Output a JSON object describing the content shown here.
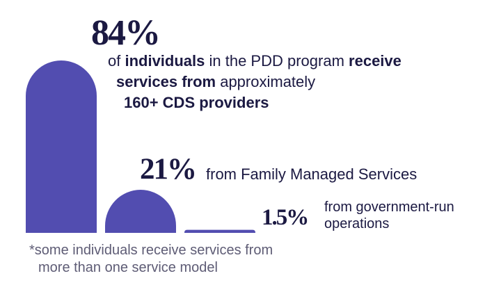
{
  "chart_data": {
    "type": "bar",
    "categories": [
      "CDS providers",
      "Family Managed Services",
      "Government-run operations"
    ],
    "values": [
      84,
      21,
      1.5
    ],
    "unit": "%",
    "ylim": [
      0,
      84
    ],
    "bar_color": "#524db0",
    "labels": [
      {
        "value": "84%",
        "lines": [
          [
            {
              "t": "of ",
              "b": false
            },
            {
              "t": "individuals",
              "b": true
            },
            {
              "t": " in the PDD program ",
              "b": false
            },
            {
              "t": "receive",
              "b": true
            }
          ],
          [
            {
              "t": "services from",
              "b": true
            },
            {
              "t": " approximately",
              "b": false
            }
          ],
          [
            {
              "t": "160+ CDS providers",
              "b": true
            }
          ]
        ]
      },
      {
        "value": "21%",
        "text": "from Family Managed Services"
      },
      {
        "value": "1.5%",
        "lines": [
          "from government-run",
          "operations"
        ]
      }
    ]
  },
  "footnote": [
    "*some individuals receive services from",
    "more than one service model"
  ]
}
